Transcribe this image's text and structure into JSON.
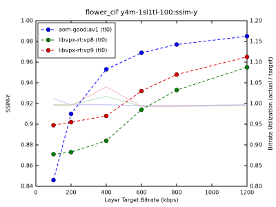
{
  "chart_data": {
    "type": "line",
    "title": "flower_cif y4m-1sl1tl-100:ssim-y",
    "x_label": "Layer Target Bitrate (kbps)",
    "y_label": "SSIM-Y",
    "y2_label": "Bitrate Utilization (actual / target)",
    "x": [
      100,
      200,
      400,
      600,
      800,
      1200
    ],
    "xlim": [
      0,
      1200
    ],
    "xticks": [
      0,
      200,
      400,
      600,
      800,
      1000,
      1200
    ],
    "ylim": [
      0.84,
      1.0
    ],
    "yticks": [
      0.84,
      0.86,
      0.88,
      0.9,
      0.92,
      0.94,
      0.96,
      0.98,
      {
        "value": 1.0,
        "label": "1.00"
      }
    ],
    "y2lim": [
      0.8,
      1.2
    ],
    "y2ticks": [
      {
        "value": 0.8,
        "label": "0.80"
      },
      0.85,
      {
        "value": 0.9,
        "label": "0.90"
      },
      0.95,
      {
        "value": 1.0,
        "label": "1.00"
      },
      1.05,
      {
        "value": 1.1,
        "label": "1.10"
      },
      1.15,
      {
        "value": 1.2,
        "label": "1.20"
      }
    ],
    "legend": "upper left",
    "series": [
      {
        "name": "aom-good:av1 (tl0)",
        "color": "#0000ff",
        "values": [
          0.846,
          0.91,
          0.953,
          0.969,
          0.977,
          0.985
        ]
      },
      {
        "name": "libvpx-rt:vp8 (tl0)",
        "color": "#007f00",
        "values": [
          0.871,
          0.873,
          0.884,
          0.914,
          0.933,
          0.955
        ]
      },
      {
        "name": "libvpx-rt:vp9 (tl0)",
        "color": "#dd0000",
        "values": [
          0.899,
          0.902,
          0.908,
          0.932,
          0.948,
          0.965
        ]
      },
      {
        "color": "#b8bff5",
        "axis": "y2",
        "values": [
          1.012,
          0.997,
          0.997,
          0.995,
          0.995,
          0.997
        ]
      },
      {
        "color": "#b5dcb5",
        "axis": "y2",
        "values": [
          0.997,
          0.997,
          1.017,
          0.993,
          0.993,
          0.995
        ]
      },
      {
        "color": "#f3bcbc",
        "axis": "y2",
        "values": [
          0.995,
          0.995,
          1.04,
          0.993,
          0.993,
          0.996
        ]
      }
    ]
  }
}
